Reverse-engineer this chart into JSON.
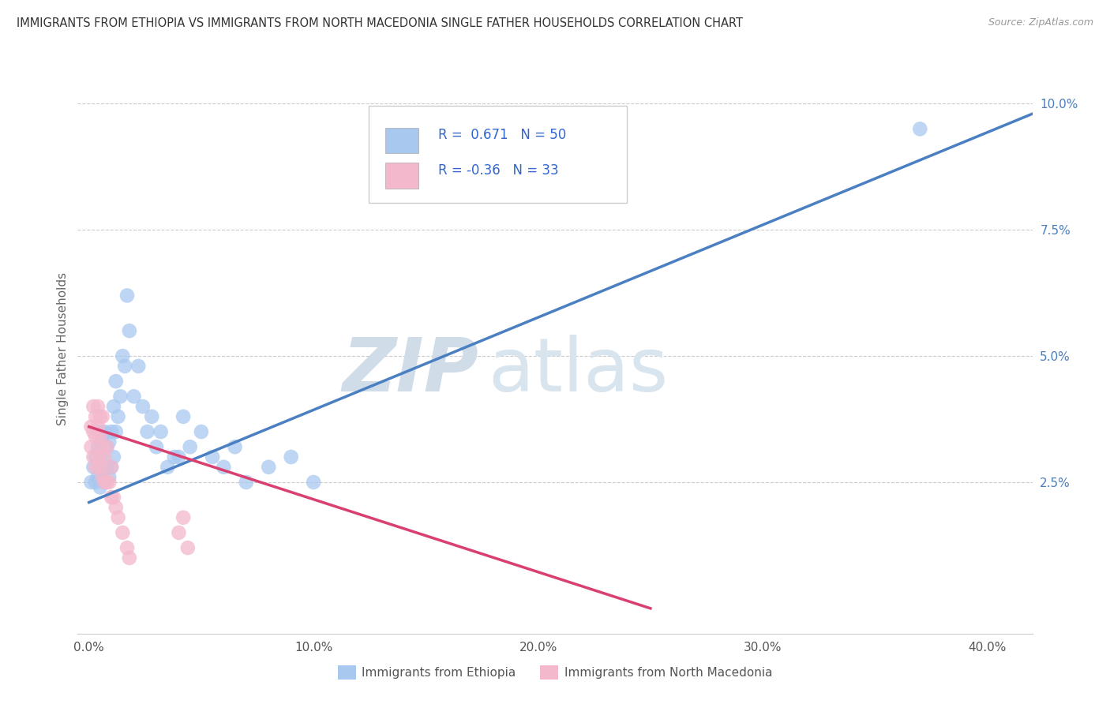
{
  "title": "IMMIGRANTS FROM ETHIOPIA VS IMMIGRANTS FROM NORTH MACEDONIA SINGLE FATHER HOUSEHOLDS CORRELATION CHART",
  "source": "Source: ZipAtlas.com",
  "ylabel": "Single Father Households",
  "xlabel_ticks": [
    "0.0%",
    "10.0%",
    "20.0%",
    "30.0%",
    "40.0%"
  ],
  "xlabel_vals": [
    0.0,
    0.1,
    0.2,
    0.3,
    0.4
  ],
  "ylabel_ticks": [
    "2.5%",
    "5.0%",
    "7.5%",
    "10.0%"
  ],
  "ylabel_vals": [
    0.025,
    0.05,
    0.075,
    0.1
  ],
  "xlim": [
    -0.005,
    0.42
  ],
  "ylim": [
    -0.005,
    0.108
  ],
  "R_ethiopia": 0.671,
  "N_ethiopia": 50,
  "R_macedonia": -0.36,
  "N_macedonia": 33,
  "ethiopia_color": "#a8c8f0",
  "macedonia_color": "#f4b8cc",
  "line_ethiopia_color": "#4a7fc1",
  "line_macedonia_color": "#d94070",
  "watermark_zip": "ZIP",
  "watermark_atlas": "atlas",
  "legend_label_ethiopia": "Immigrants from Ethiopia",
  "legend_label_macedonia": "Immigrants from North Macedonia",
  "ethiopia_x": [
    0.001,
    0.002,
    0.003,
    0.003,
    0.004,
    0.004,
    0.005,
    0.005,
    0.005,
    0.006,
    0.006,
    0.007,
    0.007,
    0.008,
    0.008,
    0.009,
    0.009,
    0.01,
    0.01,
    0.011,
    0.011,
    0.012,
    0.012,
    0.013,
    0.014,
    0.015,
    0.016,
    0.017,
    0.018,
    0.02,
    0.022,
    0.024,
    0.026,
    0.028,
    0.03,
    0.032,
    0.035,
    0.038,
    0.04,
    0.042,
    0.045,
    0.05,
    0.055,
    0.06,
    0.065,
    0.07,
    0.08,
    0.09,
    0.1,
    0.37
  ],
  "ethiopia_y": [
    0.025,
    0.028,
    0.025,
    0.03,
    0.026,
    0.032,
    0.024,
    0.03,
    0.035,
    0.027,
    0.033,
    0.025,
    0.035,
    0.028,
    0.032,
    0.026,
    0.033,
    0.028,
    0.035,
    0.03,
    0.04,
    0.035,
    0.045,
    0.038,
    0.042,
    0.05,
    0.048,
    0.062,
    0.055,
    0.042,
    0.048,
    0.04,
    0.035,
    0.038,
    0.032,
    0.035,
    0.028,
    0.03,
    0.03,
    0.038,
    0.032,
    0.035,
    0.03,
    0.028,
    0.032,
    0.025,
    0.028,
    0.03,
    0.025,
    0.095
  ],
  "macedonia_x": [
    0.001,
    0.001,
    0.002,
    0.002,
    0.002,
    0.003,
    0.003,
    0.003,
    0.004,
    0.004,
    0.004,
    0.005,
    0.005,
    0.005,
    0.006,
    0.006,
    0.006,
    0.007,
    0.007,
    0.008,
    0.008,
    0.009,
    0.01,
    0.01,
    0.011,
    0.012,
    0.013,
    0.015,
    0.017,
    0.018,
    0.04,
    0.042,
    0.044
  ],
  "macedonia_y": [
    0.032,
    0.036,
    0.03,
    0.035,
    0.04,
    0.028,
    0.034,
    0.038,
    0.03,
    0.036,
    0.04,
    0.028,
    0.034,
    0.038,
    0.026,
    0.032,
    0.038,
    0.025,
    0.03,
    0.025,
    0.032,
    0.025,
    0.022,
    0.028,
    0.022,
    0.02,
    0.018,
    0.015,
    0.012,
    0.01,
    0.015,
    0.018,
    0.012
  ],
  "line_eth_x0": 0.0,
  "line_eth_x1": 0.42,
  "line_eth_y0": 0.021,
  "line_eth_y1": 0.098,
  "line_mac_x0": 0.0,
  "line_mac_x1": 0.25,
  "line_mac_y0": 0.036,
  "line_mac_y1": 0.0
}
